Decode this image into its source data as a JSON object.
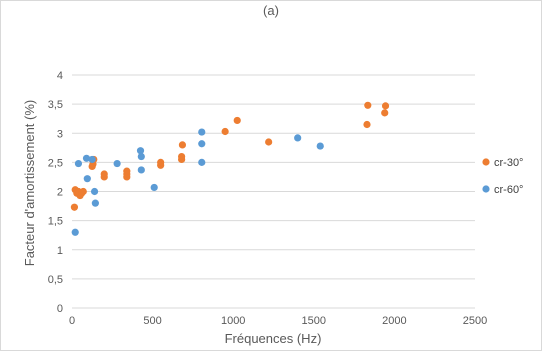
{
  "chart_data": {
    "type": "scatter",
    "title": "(a)",
    "xlabel": "Fréquences (Hz)",
    "ylabel": "Facteur d'amortissement (%)",
    "xlim": [
      0,
      2500
    ],
    "ylim": [
      0,
      4
    ],
    "x_ticks": [
      "0",
      "500",
      "1000",
      "1500",
      "2000",
      "2500"
    ],
    "y_ticks": [
      "0",
      "0,5",
      "1",
      "1,5",
      "2",
      "2,5",
      "3",
      "3,5",
      "4"
    ],
    "grid": "horizontal",
    "legend_position": "right",
    "series": [
      {
        "name": "cr-30°",
        "color": "#ED7D31",
        "points": [
          [
            15,
            1.73
          ],
          [
            20,
            2.03
          ],
          [
            30,
            1.97
          ],
          [
            40,
            2.0
          ],
          [
            50,
            1.93
          ],
          [
            60,
            1.97
          ],
          [
            70,
            2.0
          ],
          [
            125,
            2.43
          ],
          [
            130,
            2.47
          ],
          [
            135,
            2.55
          ],
          [
            200,
            2.25
          ],
          [
            200,
            2.3
          ],
          [
            340,
            2.25
          ],
          [
            340,
            2.3
          ],
          [
            340,
            2.35
          ],
          [
            550,
            2.45
          ],
          [
            550,
            2.5
          ],
          [
            680,
            2.55
          ],
          [
            680,
            2.6
          ],
          [
            685,
            2.8
          ],
          [
            950,
            3.03
          ],
          [
            1025,
            3.22
          ],
          [
            1220,
            2.85
          ],
          [
            1830,
            3.15
          ],
          [
            1835,
            3.48
          ],
          [
            1940,
            3.35
          ],
          [
            1945,
            3.47
          ]
        ]
      },
      {
        "name": "cr-60°",
        "color": "#5B9BD5",
        "points": [
          [
            20,
            1.3
          ],
          [
            40,
            2.48
          ],
          [
            90,
            2.57
          ],
          [
            95,
            2.22
          ],
          [
            125,
            2.55
          ],
          [
            140,
            2.0
          ],
          [
            145,
            1.8
          ],
          [
            280,
            2.48
          ],
          [
            425,
            2.7
          ],
          [
            430,
            2.6
          ],
          [
            430,
            2.37
          ],
          [
            510,
            2.07
          ],
          [
            805,
            3.02
          ],
          [
            805,
            2.82
          ],
          [
            805,
            2.5
          ],
          [
            1400,
            2.92
          ],
          [
            1540,
            2.78
          ]
        ]
      }
    ]
  }
}
